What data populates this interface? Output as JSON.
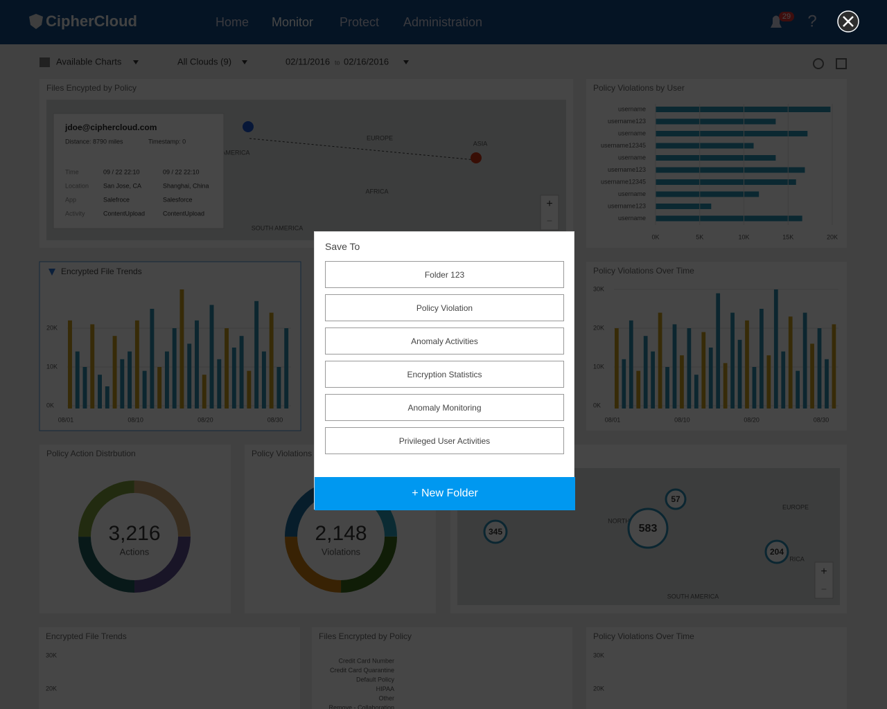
{
  "nav": {
    "logo": "CipherCloud",
    "menu": [
      "Home",
      "Monitor",
      "Protect",
      "Administration"
    ],
    "active": 1,
    "notifications": "29",
    "help": "?"
  },
  "toolbar": {
    "charts": "Available Charts",
    "clouds": "All Clouds (9)",
    "date_from": "02/11/2016",
    "date_sep": "to",
    "date_to": "02/16/2016"
  },
  "map_panel": {
    "title": "Files Encypted by Policy",
    "regions": [
      "EUROPE",
      "ASIA",
      "AFRICA",
      "SOUTH AMERICA",
      "AMERICA"
    ],
    "tooltip": {
      "email": "jdoe@ciphercloud.com",
      "distance": "Distance: 8790 miles",
      "timestamp": "Timestamp: 0",
      "labels": [
        "Time",
        "Location",
        "App",
        "Activity"
      ],
      "from": [
        "09 / 22 22:10",
        "San Jose, CA",
        "Salefroce",
        "ContentUpload"
      ],
      "to": [
        "09 / 22 22:10",
        "Shanghai, China",
        "Salesforce",
        "ContentUpload"
      ]
    },
    "zoom_in": "+",
    "zoom_out": "−"
  },
  "users_panel": {
    "title": "Policy Violations by User",
    "users": [
      "username",
      "username123",
      "username",
      "username12345",
      "username",
      "username123",
      "username12345",
      "username",
      "username123",
      "username"
    ],
    "values": [
      19.8,
      13.6,
      17.2,
      11.1,
      13.6,
      16.9,
      15.9,
      11.7,
      6.3,
      16.6
    ],
    "xlim": [
      0,
      20
    ],
    "xticks": [
      {
        "value": 0,
        "label": "0K"
      },
      {
        "value": 5,
        "label": "5K"
      },
      {
        "value": 10,
        "label": "10K"
      },
      {
        "value": 15,
        "label": "15K"
      },
      {
        "value": 20,
        "label": "20K"
      }
    ]
  },
  "trend_panel": {
    "title": "Encrypted File Trends",
    "values": [
      22,
      14,
      10,
      21,
      8,
      5,
      18,
      12,
      14,
      22,
      9,
      25,
      10,
      14,
      20,
      30,
      16,
      22,
      8,
      26,
      12,
      20,
      15,
      18,
      9,
      27,
      14,
      24,
      10,
      20
    ],
    "ylim": [
      0,
      30
    ],
    "yticks": [
      {
        "value": 0,
        "label": "0K"
      },
      {
        "value": 10,
        "label": "10K"
      },
      {
        "value": 20,
        "label": "20K"
      }
    ],
    "xticks": [
      "08/01",
      "08/10",
      "08/20",
      "08/30"
    ]
  },
  "overtime_panel": {
    "title": "Policy Violations Over Time",
    "values": [
      20,
      12,
      22,
      9,
      18,
      14,
      24,
      10,
      21,
      13,
      20,
      8,
      19,
      15,
      29,
      11,
      24,
      17,
      22,
      10,
      25,
      13,
      30,
      14,
      23,
      9,
      24,
      16,
      20,
      12,
      21
    ],
    "ylim": [
      0,
      30
    ],
    "yticks": [
      {
        "value": 0,
        "label": "0K"
      },
      {
        "value": 10,
        "label": "10K"
      },
      {
        "value": 20,
        "label": "20K"
      },
      {
        "value": 30,
        "label": "30K"
      }
    ],
    "xticks": [
      "08/01",
      "08/10",
      "08/20",
      "08/30"
    ]
  },
  "donut1": {
    "title": "Policy Action Distrbution",
    "value": "3,216",
    "label": "Actions"
  },
  "donut2": {
    "title": "Policy Violations",
    "value": "2,148",
    "label": "Violations"
  },
  "map2": {
    "bubbles": [
      "57",
      "583",
      "345",
      "204"
    ],
    "regions": [
      "EUROPE",
      "NORTH",
      "SOUTH AMERICA",
      "RICA"
    ],
    "zoom_in": "+",
    "zoom_out": "−"
  },
  "bottom": {
    "titles": [
      "Encrypted File Trends",
      "Files Encrypted by Policy",
      "Policy Violations Over Time"
    ],
    "yticks": [
      "30K",
      "20K"
    ],
    "policies": [
      "Credit Card Number",
      "Credit Card Quarantine",
      "Default Policy",
      "HIPAA",
      "Other",
      "Remove - Collaboration"
    ]
  },
  "modal": {
    "title": "Save To",
    "folders": [
      "Folder 123",
      "Policy Violation",
      "Anomaly Activities",
      "Encryption Statistics",
      "Anomaly Monitoring",
      "Privileged User Activities"
    ],
    "new_folder": "+ New Folder"
  }
}
